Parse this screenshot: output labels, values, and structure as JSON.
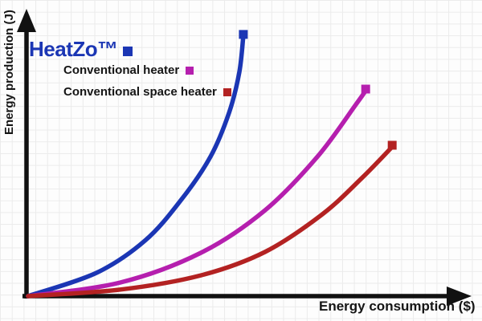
{
  "colors": {
    "background": "#fdfdfd",
    "grid": "#ebebeb",
    "axis": "#111111",
    "text": "#151515"
  },
  "chart_data": {
    "type": "line",
    "title": "",
    "xlabel": "Energy consumption ($)",
    "ylabel": "Energy production (J)",
    "grid": true,
    "legend_position": "upper-left",
    "x_range": [
      0,
      100
    ],
    "y_range": [
      0,
      100
    ],
    "axis_ticks_shown": false,
    "series": [
      {
        "name": "HeatZo™",
        "color": "#1b36b4",
        "marker": "square-end",
        "points": [
          [
            0,
            0
          ],
          [
            15.5,
            8.2
          ],
          [
            26.4,
            19.4
          ],
          [
            34.5,
            33.5
          ],
          [
            41.3,
            49.0
          ],
          [
            45.5,
            64.5
          ],
          [
            47.8,
            78.6
          ],
          [
            48.7,
            91.3
          ]
        ]
      },
      {
        "name": "Conventional heater",
        "color": "#b51fae",
        "marker": "square-end",
        "points": [
          [
            0,
            0
          ],
          [
            20.9,
            4.8
          ],
          [
            39.1,
            15.2
          ],
          [
            53.6,
            30.1
          ],
          [
            65.5,
            49.0
          ],
          [
            74.2,
            67.3
          ],
          [
            76.4,
            72.1
          ]
        ]
      },
      {
        "name": "Conventional space heater",
        "color": "#b32222",
        "marker": "square-end",
        "points": [
          [
            0,
            0
          ],
          [
            20.9,
            2.3
          ],
          [
            39.1,
            7.3
          ],
          [
            53.6,
            15.5
          ],
          [
            66.4,
            28.5
          ],
          [
            75.5,
            41.4
          ],
          [
            82.4,
            52.4
          ]
        ]
      }
    ]
  }
}
